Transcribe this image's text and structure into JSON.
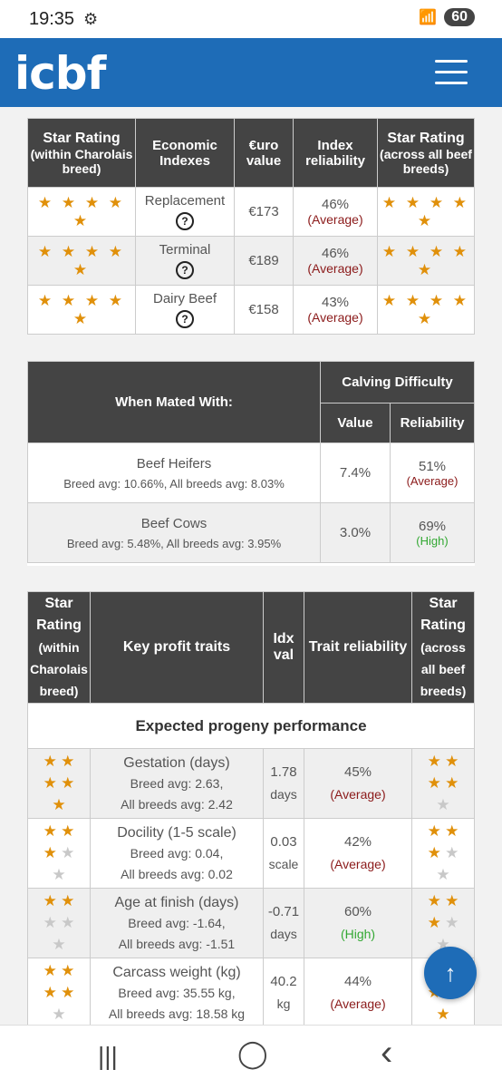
{
  "status": {
    "time": "19:35",
    "battery": "60",
    "wifi": "5"
  },
  "header": {
    "logo": "icbf"
  },
  "table1": {
    "headers": [
      "Star Rating",
      "(within Charolais breed)",
      "Economic Indexes",
      "€uro value",
      "Index reliability",
      "Star Rating",
      "(across all beef breeds)"
    ],
    "rows": [
      {
        "index": "Replacement",
        "value": "€173",
        "rel": "46%",
        "rel_label": "(Average)"
      },
      {
        "index": "Terminal",
        "value": "€189",
        "rel": "46%",
        "rel_label": "(Average)"
      },
      {
        "index": "Dairy Beef",
        "value": "€158",
        "rel": "43%",
        "rel_label": "(Average)"
      }
    ]
  },
  "table2": {
    "when_mated": "When Mated With:",
    "calving": "Calving Difficulty",
    "value": "Value",
    "reliability": "Reliability",
    "rows": [
      {
        "name": "Beef Heifers",
        "sub": "Breed avg: 10.66%, All breeds avg: 8.03%",
        "value": "7.4%",
        "rel": "51%",
        "rel_label": "(Average)"
      },
      {
        "name": "Beef Cows",
        "sub": "Breed avg: 5.48%, All breeds avg: 3.95%",
        "value": "3.0%",
        "rel": "69%",
        "rel_label": "(High)"
      }
    ]
  },
  "table3": {
    "h_star1": "Star Rating",
    "h_star1_sub": "(within Charolais breed)",
    "h_traits": "Key profit traits",
    "h_idx": "Idx val",
    "h_rel": "Trait reliability",
    "h_star2": "Star Rating",
    "h_star2_sub": "(across all beef breeds)",
    "section": "Expected progeny performance",
    "rows": [
      {
        "name": "Gestation (days)",
        "breed": "Breed avg: 2.63,",
        "all": "All breeds avg: 2.42",
        "val": "1.78",
        "unit": "days",
        "rel": "45%",
        "rel_label": "(Average)"
      },
      {
        "name": "Docility (1-5 scale)",
        "breed": "Breed avg: 0.04,",
        "all": "All breeds avg: 0.02",
        "val": "0.03",
        "unit": "scale",
        "rel": "42%",
        "rel_label": "(Average)"
      },
      {
        "name": "Age at finish (days)",
        "breed": "Breed avg: -1.64,",
        "all": "All breeds avg: -1.51",
        "val": "-0.71",
        "unit": "days",
        "rel": "60%",
        "rel_label": "(High)"
      },
      {
        "name": "Carcass weight (kg)",
        "breed": "Breed avg: 35.55 kg,",
        "all": "All breeds avg: 18.58 kg",
        "val": "40.2",
        "unit": "kg",
        "rel": "44%",
        "rel_label": "(Average)"
      }
    ]
  },
  "stars": {
    "five": "★ ★ ★ ★ ★"
  },
  "icons": {
    "help": "?",
    "gear": "gear-icon",
    "scroll_top": "↑",
    "nav_recent": "|||",
    "nav_home": "◯",
    "nav_back": "‹"
  }
}
